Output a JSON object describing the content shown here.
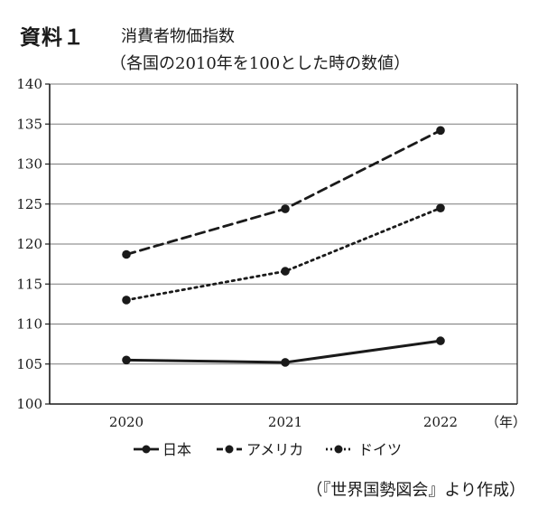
{
  "header": {
    "label": "資料１",
    "title": "消費者物価指数",
    "subtitle": "（各国の2010年を100とした時の数値）"
  },
  "source": "（『世界国勢図会』より作成）",
  "chart_data": {
    "type": "line",
    "title": "消費者物価指数",
    "subtitle": "（各国の2010年を100とした時の数値）",
    "x": [
      "2020",
      "2021",
      "2022"
    ],
    "x_unit": "（年）",
    "ylim": [
      100,
      140
    ],
    "y_ticks": [
      100,
      105,
      110,
      115,
      120,
      125,
      130,
      135,
      140
    ],
    "grid": true,
    "legend_position": "bottom",
    "series": [
      {
        "name": "日本",
        "values": [
          105.5,
          105.2,
          107.9
        ],
        "line_style": "solid",
        "color": "#1a1a1a"
      },
      {
        "name": "アメリカ",
        "values": [
          118.7,
          124.4,
          134.2
        ],
        "line_style": "dashed",
        "color": "#1a1a1a"
      },
      {
        "name": "ドイツ",
        "values": [
          113.0,
          116.6,
          124.5
        ],
        "line_style": "dotted",
        "color": "#1a1a1a"
      }
    ]
  }
}
